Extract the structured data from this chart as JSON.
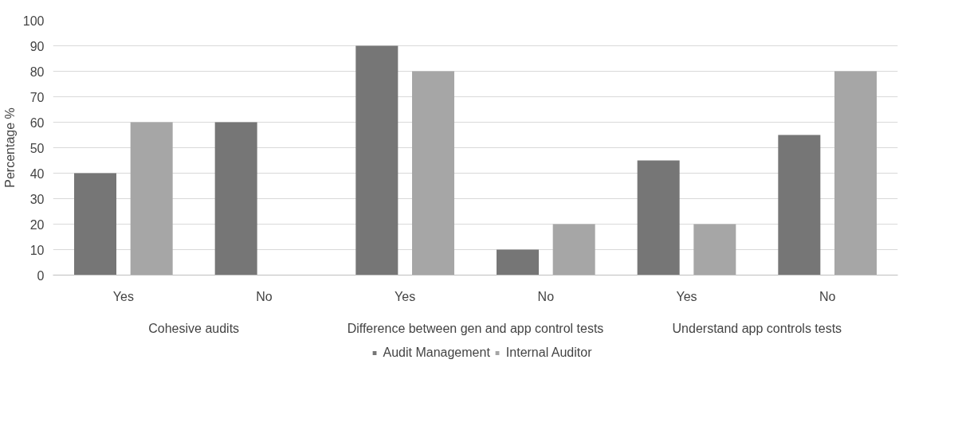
{
  "chart_data": {
    "type": "bar",
    "ylabel": "Percentage %",
    "categories": [
      "Yes",
      "No",
      "Yes",
      "No",
      "Yes",
      "No"
    ],
    "annotations": [
      "Cohesive audits",
      "Difference between gen and app control tests",
      "Understand app controls tests"
    ],
    "series": [
      {
        "name": "Audit Management",
        "color": "#767676",
        "values": [
          40,
          60,
          90,
          10,
          45,
          55
        ]
      },
      {
        "name": "Internal Auditor",
        "color": "#a6a6a6",
        "values": [
          60,
          0,
          80,
          20,
          20,
          80
        ]
      }
    ],
    "ylim": [
      0,
      100
    ],
    "yticks": [
      0,
      10,
      20,
      30,
      40,
      50,
      60,
      70,
      80,
      90,
      100
    ],
    "grid": "y",
    "legend": "bottom"
  }
}
